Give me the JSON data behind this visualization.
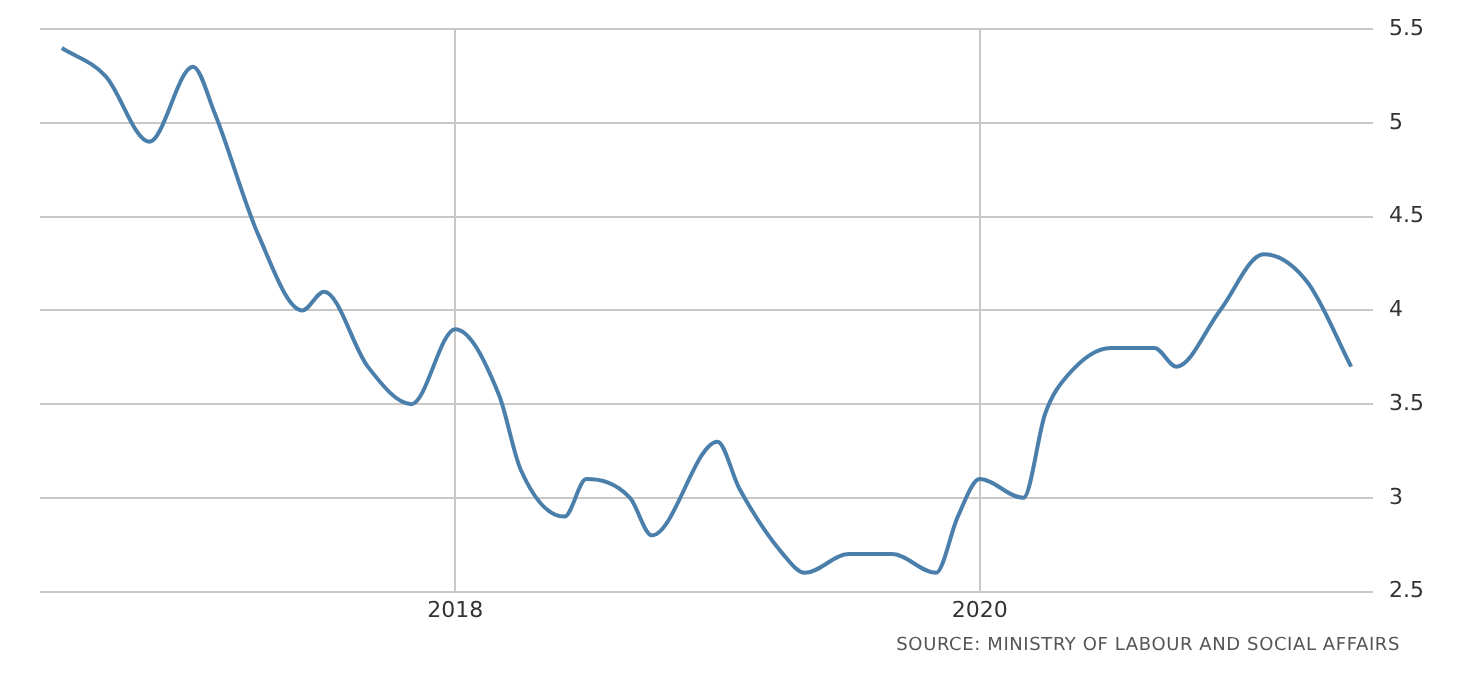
{
  "chart_data": {
    "type": "line",
    "x": [
      "2016-07",
      "2016-09",
      "2016-11",
      "2017-01",
      "2017-02",
      "2017-04",
      "2017-06",
      "2017-07",
      "2017-09",
      "2017-11",
      "2018-01",
      "2018-03",
      "2018-04",
      "2018-06",
      "2018-07",
      "2018-09",
      "2018-10",
      "2019-01",
      "2019-02",
      "2019-04",
      "2019-05",
      "2019-07",
      "2019-09",
      "2019-11",
      "2019-12",
      "2020-01",
      "2020-03",
      "2020-04",
      "2020-05",
      "2020-07",
      "2020-09",
      "2020-10",
      "2020-12",
      "2021-02",
      "2021-04",
      "2021-06"
    ],
    "series": [
      {
        "color": "#4a7fab",
        "values": [
          5.4,
          5.25,
          4.9,
          5.3,
          5.05,
          4.4,
          4.0,
          4.1,
          3.7,
          3.5,
          3.9,
          3.55,
          3.15,
          2.9,
          3.1,
          3.0,
          2.8,
          3.3,
          3.05,
          2.7,
          2.6,
          2.7,
          2.7,
          2.6,
          2.9,
          3.1,
          3.0,
          3.45,
          3.65,
          3.8,
          3.8,
          3.7,
          4.0,
          4.3,
          4.15,
          3.7
        ]
      }
    ],
    "xlim": [
      "2016-06",
      "2021-07"
    ],
    "xticks": [
      "2018",
      "2020"
    ],
    "ylim": [
      2.5,
      5.5
    ],
    "yticks": [
      2.5,
      3,
      3.5,
      4,
      4.5,
      5,
      5.5
    ],
    "grid": true,
    "legend": false,
    "marker": "none",
    "line_style": "solid",
    "annotations": [
      "SOURCE: MINISTRY OF LABOUR AND SOCIAL AFFAIRS"
    ]
  }
}
